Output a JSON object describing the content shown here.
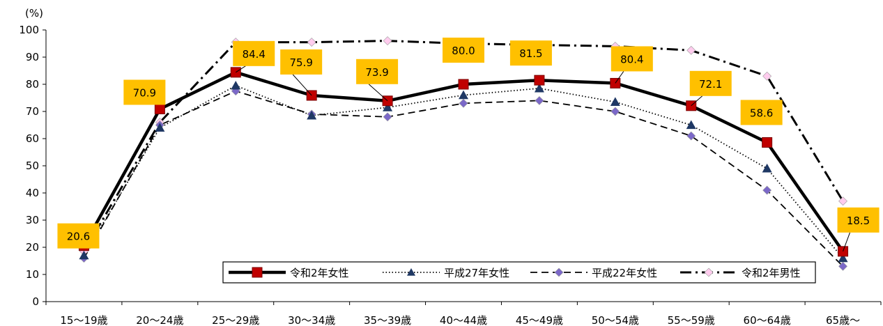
{
  "chart_data": {
    "type": "line",
    "unit_label": "(%)",
    "categories": [
      "15～19歳",
      "20～24歳",
      "25～29歳",
      "30～34歳",
      "35～39歳",
      "40～44歳",
      "45～49歳",
      "50～54歳",
      "55～59歳",
      "60～64歳",
      "65歳～"
    ],
    "ylim": [
      0,
      100
    ],
    "yticks": [
      0,
      10,
      20,
      30,
      40,
      50,
      60,
      70,
      80,
      90,
      100
    ],
    "grid": false,
    "legend_position": "bottom-right",
    "series": [
      {
        "name": "令和2年女性",
        "values": [
          20.6,
          70.9,
          84.4,
          75.9,
          73.9,
          80.0,
          81.5,
          80.4,
          72.1,
          58.6,
          18.5
        ],
        "color": "#000000",
        "marker": "square",
        "marker_color": "#c00000",
        "dash": "solid",
        "labeled": true
      },
      {
        "name": "平成27年女性",
        "values": [
          17.0,
          64.0,
          79.5,
          68.5,
          71.5,
          76.0,
          78.5,
          73.5,
          65.0,
          49.0,
          16.0
        ],
        "color": "#000000",
        "marker": "triangle",
        "marker_color": "#1f3864",
        "dash": "dotted",
        "labeled": false
      },
      {
        "name": "平成22年女性",
        "values": [
          16.0,
          65.0,
          77.5,
          69.0,
          68.0,
          73.0,
          74.0,
          70.0,
          61.0,
          41.0,
          13.0
        ],
        "color": "#000000",
        "marker": "diamond",
        "marker_color": "#7b68c8",
        "dash": "dashed",
        "labeled": false
      },
      {
        "name": "令和2年男性",
        "values": [
          18.5,
          66.0,
          95.5,
          95.5,
          96.0,
          95.0,
          94.5,
          94.0,
          92.5,
          83.0,
          37.0
        ],
        "color": "#000000",
        "marker": "diamond",
        "marker_color": "#ffccee",
        "dash": "dashdot",
        "labeled": false
      }
    ],
    "data_labels": [
      "20.6",
      "70.9",
      "84.4",
      "75.9",
      "73.9",
      "80.0",
      "81.5",
      "80.4",
      "72.1",
      "58.6",
      "18.5"
    ],
    "label_box_color": "#ffc000"
  }
}
